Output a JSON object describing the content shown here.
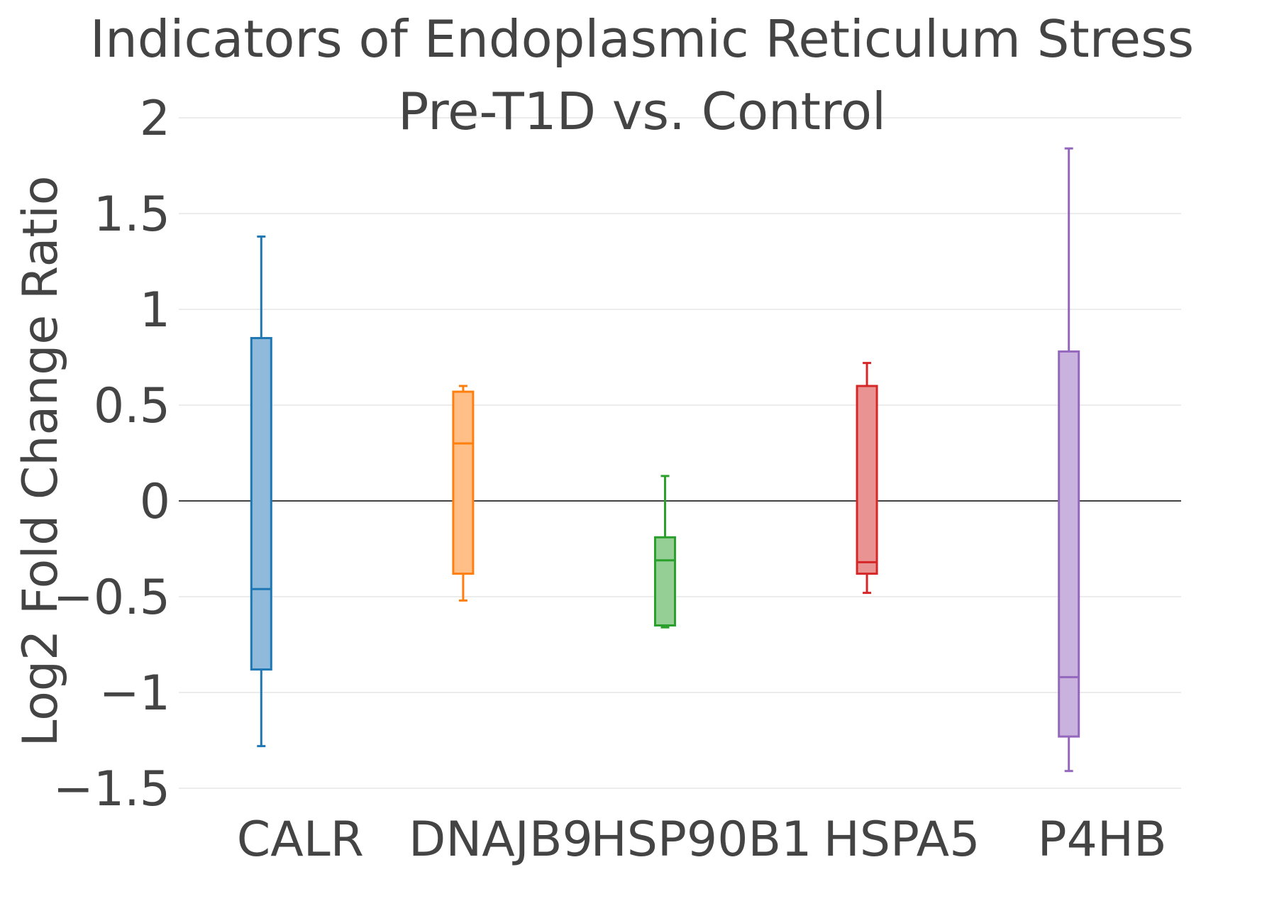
{
  "chart_data": {
    "type": "box",
    "title": "Indicators of Endoplasmic Reticulum Stress",
    "subtitle": "Pre-T1D vs. Control",
    "xlabel": "",
    "ylabel": "Log2 Fold Change Ratio",
    "ylim": [
      -1.5,
      2
    ],
    "yticks": [
      {
        "value": 2,
        "label": "2"
      },
      {
        "value": 1.5,
        "label": "1.5"
      },
      {
        "value": 1,
        "label": "1"
      },
      {
        "value": 0.5,
        "label": "0.5"
      },
      {
        "value": 0,
        "label": "0"
      },
      {
        "value": -0.5,
        "label": "−0.5"
      },
      {
        "value": -1,
        "label": "−1"
      },
      {
        "value": -1.5,
        "label": "−1.5"
      }
    ],
    "grid": true,
    "zero_line": true,
    "categories": [
      "CALR",
      "DNAJB9",
      "HSP90B1",
      "HSPA5",
      "P4HB"
    ],
    "series": [
      {
        "category": "CALR",
        "color": "#1f77b4",
        "fill": "#8fbadb",
        "min": -1.28,
        "q1": -0.88,
        "median": -0.46,
        "q3": 0.85,
        "max": 1.38
      },
      {
        "category": "DNAJB9",
        "color": "#ff7f0e",
        "fill": "#ffbf86",
        "min": -0.52,
        "q1": -0.38,
        "median": 0.3,
        "q3": 0.57,
        "max": 0.6
      },
      {
        "category": "HSP90B1",
        "color": "#2ca02c",
        "fill": "#95cf95",
        "min": -0.66,
        "q1": -0.65,
        "median": -0.31,
        "q3": -0.19,
        "max": 0.13
      },
      {
        "category": "HSPA5",
        "color": "#d62728",
        "fill": "#ea9393",
        "min": -0.48,
        "q1": -0.38,
        "median": -0.32,
        "q3": 0.6,
        "max": 0.72
      },
      {
        "category": "P4HB",
        "color": "#9467bd",
        "fill": "#c9b3de",
        "min": -1.41,
        "q1": -1.23,
        "median": -0.92,
        "q3": 0.78,
        "max": 1.84
      }
    ]
  }
}
